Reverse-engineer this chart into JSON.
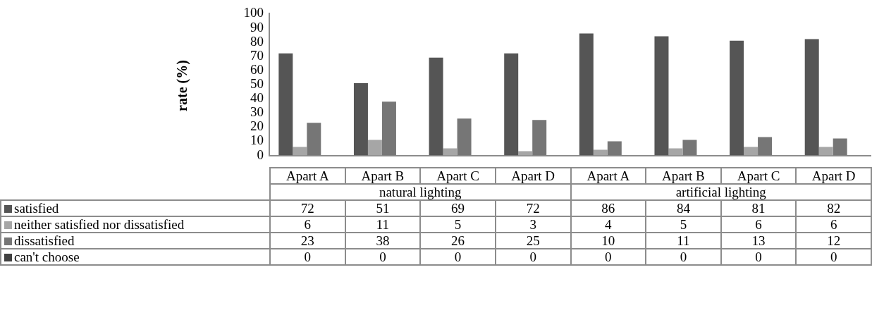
{
  "chart_data": {
    "type": "bar",
    "ylabel": "rate (%)",
    "categories": [
      "Apart A",
      "Apart B",
      "Apart C",
      "Apart D",
      "Apart A",
      "Apart B",
      "Apart C",
      "Apart D"
    ],
    "annotations": [
      "natural lighting",
      "artificial lighting"
    ],
    "series": [
      {
        "name": "satisfied",
        "color": "#555555",
        "values": [
          72,
          51,
          69,
          72,
          86,
          84,
          81,
          82
        ]
      },
      {
        "name": "neither satisfied nor dissatisfied",
        "color": "#a6a6a6",
        "values": [
          6,
          11,
          5,
          3,
          4,
          5,
          6,
          6
        ]
      },
      {
        "name": "dissatisfied",
        "color": "#767676",
        "values": [
          23,
          38,
          26,
          25,
          10,
          11,
          13,
          12
        ]
      },
      {
        "name": "can't choose",
        "color": "#404040",
        "values": [
          0,
          0,
          0,
          0,
          0,
          0,
          0,
          0
        ]
      }
    ],
    "ylim": [
      0,
      100
    ],
    "yticks": [
      0,
      10,
      20,
      30,
      40,
      50,
      60,
      70,
      80,
      90,
      100
    ],
    "data_labels": true,
    "legend": "bottom left"
  }
}
